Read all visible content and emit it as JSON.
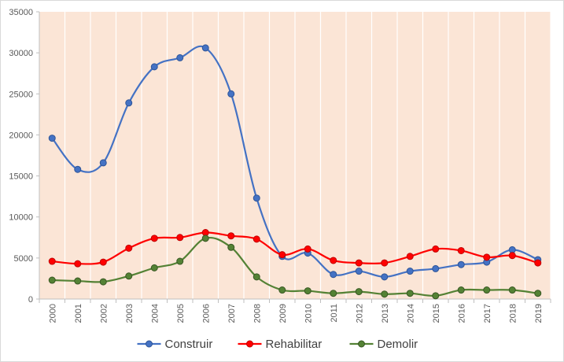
{
  "chart_data": {
    "type": "line",
    "title": "",
    "xlabel": "",
    "ylabel": "",
    "x": [
      "2000",
      "2001",
      "2002",
      "2003",
      "2004",
      "2005",
      "2006",
      "2007",
      "2008",
      "2009",
      "2010",
      "2011",
      "2012",
      "2013",
      "2014",
      "2015",
      "2016",
      "2017",
      "2018",
      "2019"
    ],
    "ylim": [
      0,
      35000
    ],
    "yticks": [
      "0",
      "5000",
      "10000",
      "15000",
      "20000",
      "25000",
      "30000",
      "35000"
    ],
    "grid": "vertical",
    "legend": "bottom",
    "plot_background": "#fbe5d6",
    "series": [
      {
        "name": "Construir",
        "color": "#4472c4",
        "marker_stroke": "#2f5597",
        "values": [
          19600,
          15800,
          16600,
          23900,
          28300,
          29400,
          30600,
          25000,
          12300,
          5200,
          5600,
          3000,
          3400,
          2700,
          3400,
          3700,
          4200,
          4500,
          6000,
          4800
        ]
      },
      {
        "name": "Rehabilitar",
        "color": "#ff0000",
        "marker_stroke": "#c00000",
        "values": [
          4600,
          4300,
          4500,
          6200,
          7400,
          7500,
          8100,
          7700,
          7300,
          5400,
          6100,
          4700,
          4400,
          4400,
          5200,
          6100,
          5900,
          5100,
          5300,
          4400
        ]
      },
      {
        "name": "Demolir",
        "color": "#548235",
        "marker_stroke": "#385723",
        "values": [
          2300,
          2200,
          2100,
          2800,
          3800,
          4600,
          7400,
          6300,
          2700,
          1100,
          1000,
          700,
          900,
          600,
          700,
          400,
          1100,
          1100,
          1100,
          700
        ]
      }
    ]
  }
}
